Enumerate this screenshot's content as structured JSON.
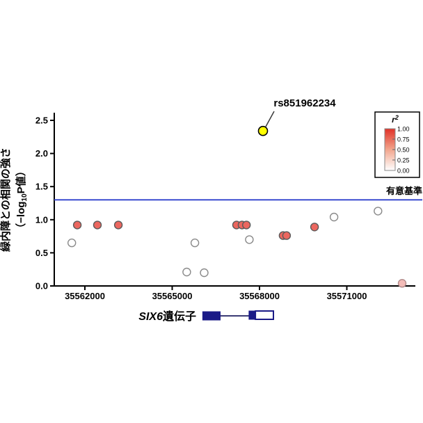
{
  "figure": {
    "annotation_label": "rs851962234",
    "threshold_label": "有意基準",
    "ylabel_line1": "緑内障との相関の強さ",
    "ylabel_line2_pre": "（−log",
    "ylabel_line2_sub": "10",
    "ylabel_line2_post": "P値）"
  },
  "chart_data": {
    "type": "scatter",
    "title": "",
    "xlabel": "",
    "ylabel": "緑内障との相関の強さ（−log10P値）",
    "xlim": [
      35560950,
      35573350
    ],
    "ylim": [
      0,
      2.61
    ],
    "grid": false,
    "x_ticks": [
      "35562000",
      "35565000",
      "35568000",
      "35571000"
    ],
    "x_tick_values": [
      35562000,
      35565000,
      35568000,
      35571000
    ],
    "y_ticks": [
      "0.0",
      "0.5",
      "1.0",
      "1.5",
      "2.0",
      "2.5"
    ],
    "y_tick_values": [
      0.0,
      0.5,
      1.0,
      1.5,
      2.0,
      2.5
    ],
    "threshold": {
      "value": 1.3,
      "label": "有意基準",
      "color": "#3a4bd0"
    },
    "lead_snp": {
      "id": "rs851962234",
      "x": 35568120,
      "y": 2.34,
      "fill": "#ffff00",
      "stroke": "#000000"
    },
    "points": [
      {
        "x": 35561550,
        "y": 0.65,
        "fill": "#ffffff",
        "stroke": "#8a8a8a"
      },
      {
        "x": 35561740,
        "y": 0.92,
        "fill": "#ec675f",
        "stroke": "#5a5a5a"
      },
      {
        "x": 35562430,
        "y": 0.92,
        "fill": "#ec675f",
        "stroke": "#5a5a5a"
      },
      {
        "x": 35563150,
        "y": 0.92,
        "fill": "#ec675f",
        "stroke": "#5a5a5a"
      },
      {
        "x": 35565500,
        "y": 0.21,
        "fill": "#ffffff",
        "stroke": "#8a8a8a"
      },
      {
        "x": 35565780,
        "y": 0.65,
        "fill": "#ffffff",
        "stroke": "#8a8a8a"
      },
      {
        "x": 35566100,
        "y": 0.2,
        "fill": "#ffffff",
        "stroke": "#8a8a8a"
      },
      {
        "x": 35567210,
        "y": 0.92,
        "fill": "#ec675f",
        "stroke": "#5a5a5a"
      },
      {
        "x": 35567400,
        "y": 0.92,
        "fill": "#ec675f",
        "stroke": "#5a5a5a"
      },
      {
        "x": 35567550,
        "y": 0.92,
        "fill": "#ec675f",
        "stroke": "#5a5a5a"
      },
      {
        "x": 35567650,
        "y": 0.7,
        "fill": "#ffffff",
        "stroke": "#8a8a8a"
      },
      {
        "x": 35568810,
        "y": 0.76,
        "fill": "#ec675f",
        "stroke": "#5a5a5a"
      },
      {
        "x": 35568930,
        "y": 0.76,
        "fill": "#ec675f",
        "stroke": "#5a5a5a"
      },
      {
        "x": 35569890,
        "y": 0.89,
        "fill": "#ec675f",
        "stroke": "#5a5a5a"
      },
      {
        "x": 35570560,
        "y": 1.04,
        "fill": "#ffffff",
        "stroke": "#8a8a8a"
      },
      {
        "x": 35572070,
        "y": 1.13,
        "fill": "#ffffff",
        "stroke": "#8a8a8a"
      },
      {
        "x": 35572900,
        "y": 0.04,
        "fill": "#f3bcb8",
        "stroke": "#b08a8a"
      }
    ],
    "legend": {
      "title": "r",
      "title_sup": "2",
      "labels": [
        "1.00",
        "0.75",
        "0.50",
        "0.25",
        "0.00"
      ],
      "top_color": "#e03127",
      "mid_color": "#f2a68d",
      "bottom_color": "#ffffff",
      "position": "upper right"
    },
    "gene": {
      "label_italic": "SIX6",
      "label_rest": "遺伝子",
      "color": "#1b1b87",
      "intron_color": "#3b3b74",
      "exon1": [
        35566050,
        35566650
      ],
      "exon2_cds": [
        35567640,
        35567860
      ],
      "exon2_utr": [
        35567860,
        35568480
      ]
    }
  }
}
